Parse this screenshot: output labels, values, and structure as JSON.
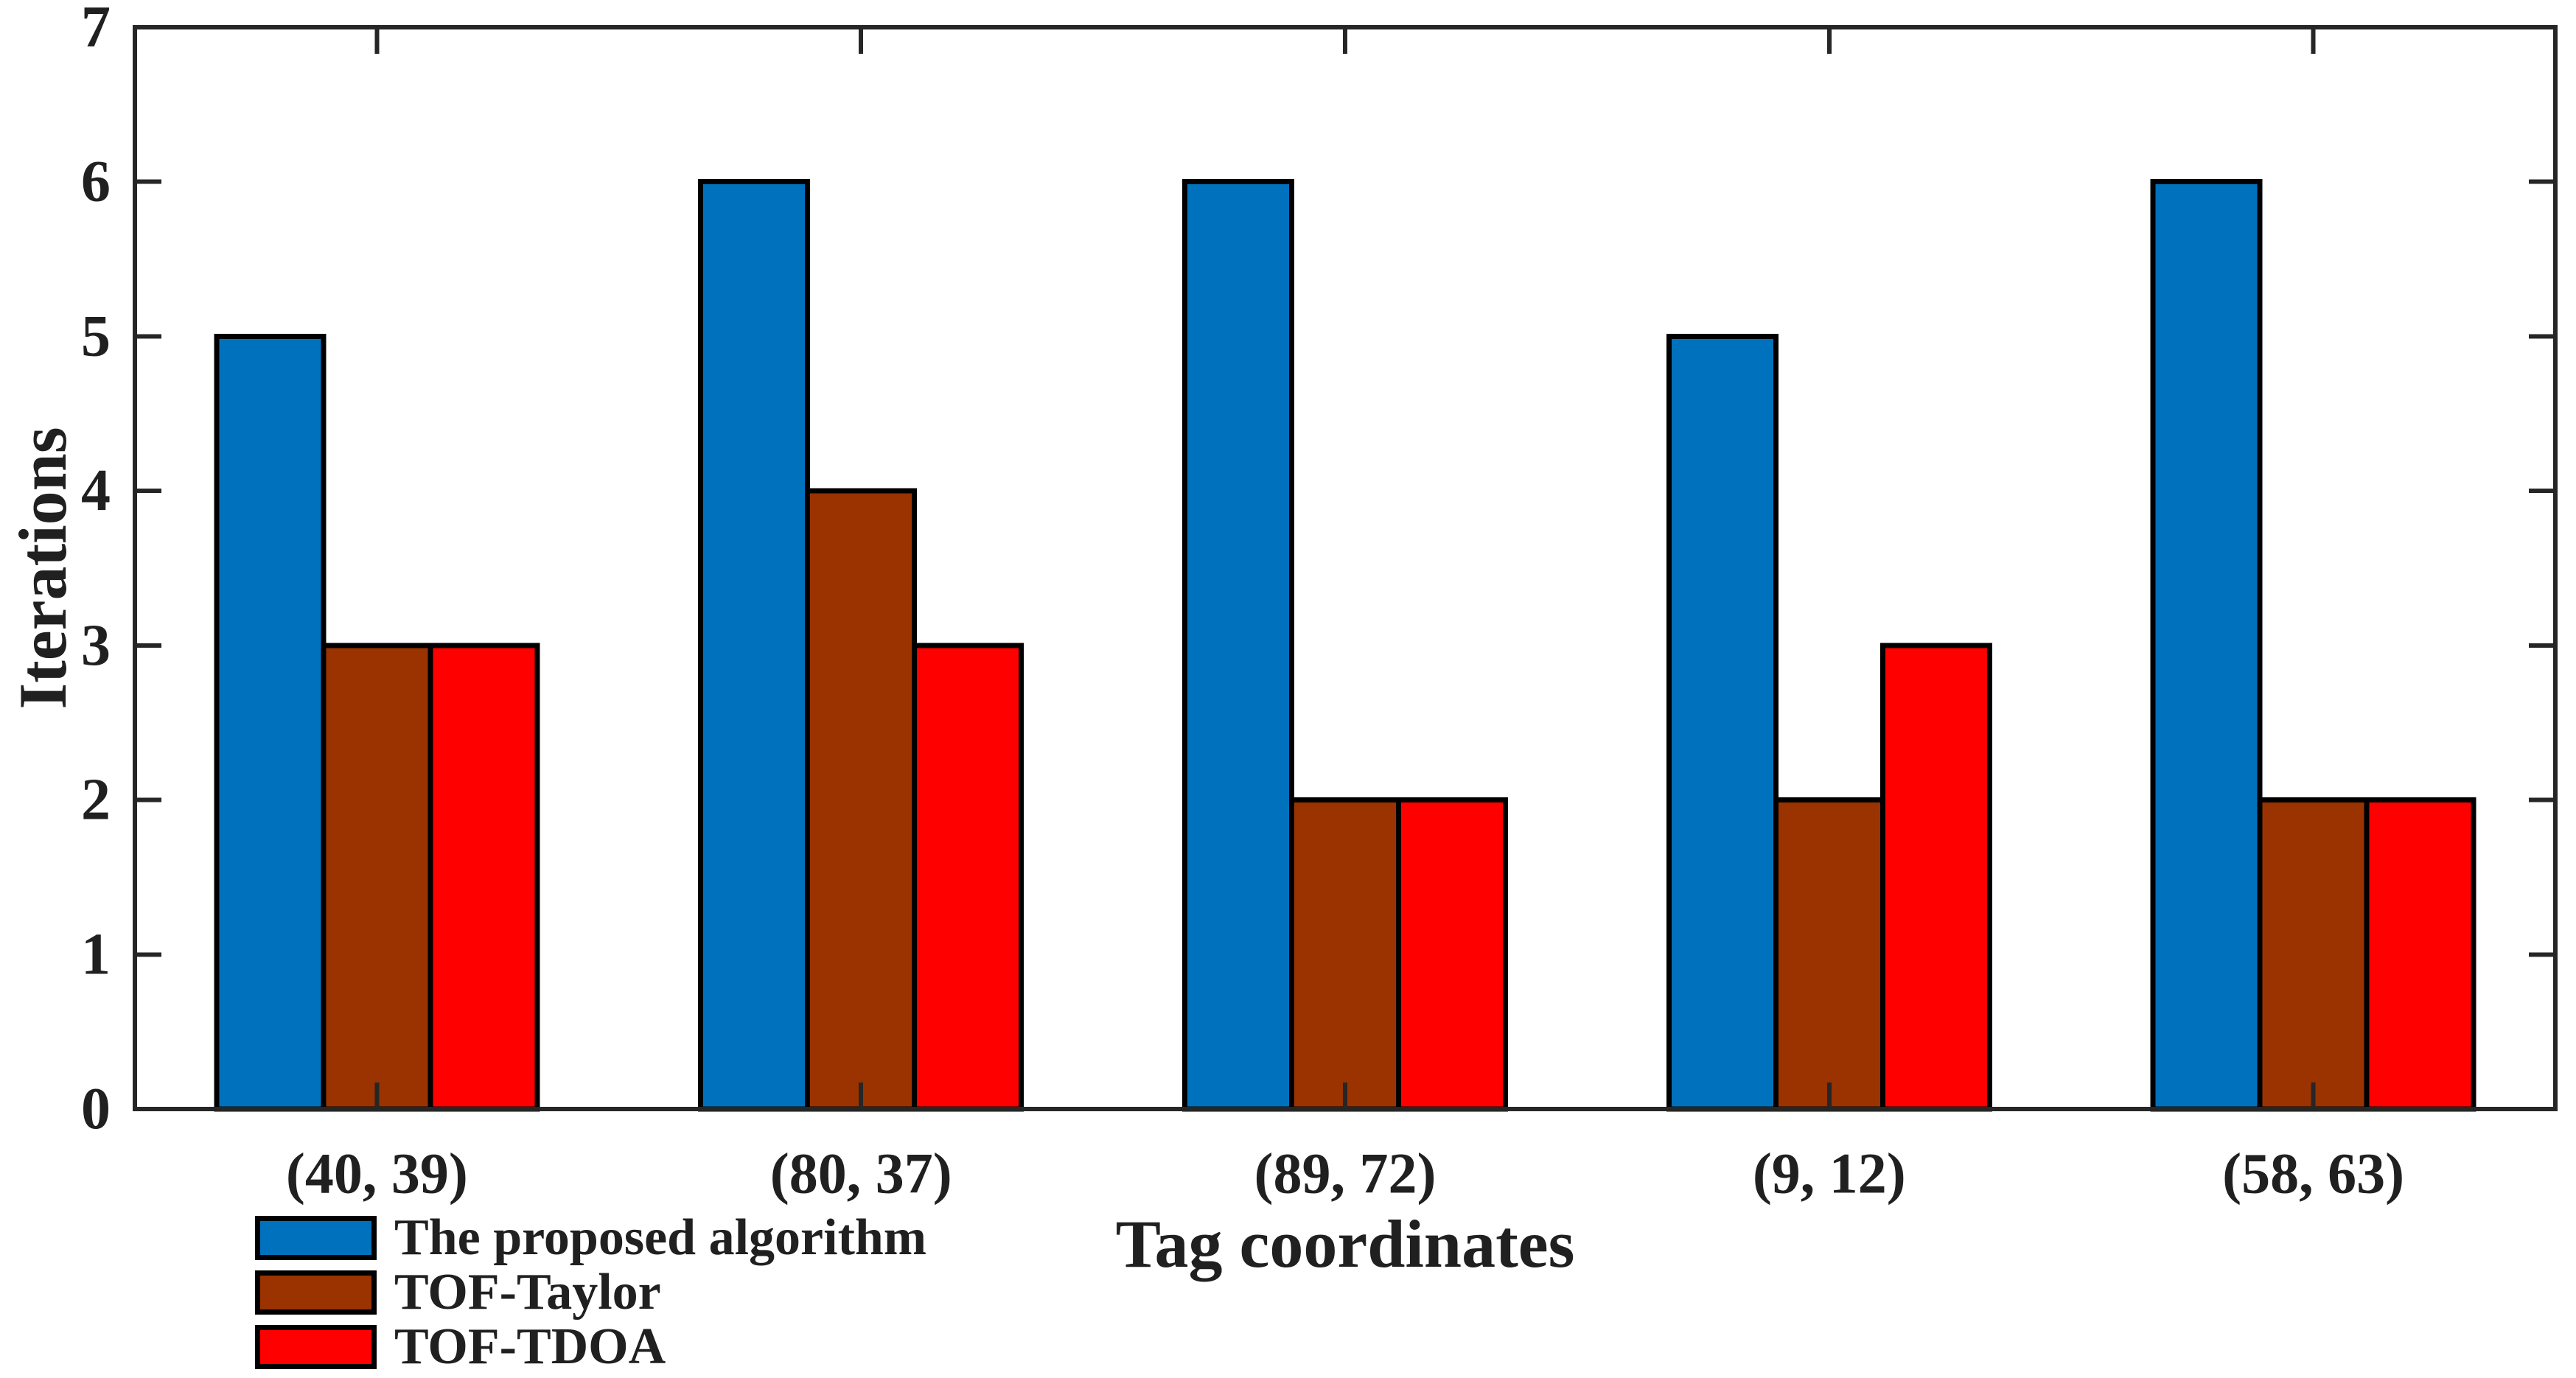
{
  "figure": {
    "background": "#FFFFFF"
  },
  "chart_data": {
    "type": "bar",
    "title": "",
    "xlabel": "Tag coordinates",
    "ylabel": "Iterations",
    "categories": [
      "(40, 39)",
      "(80, 37)",
      "(89, 72)",
      "(9, 12)",
      "(58, 63)"
    ],
    "series": [
      {
        "name": "The proposed algorithm",
        "color": "#0072BD",
        "values": [
          5,
          6,
          6,
          5,
          6
        ]
      },
      {
        "name": "TOF-Taylor",
        "color": "#9A3300",
        "values": [
          3,
          4,
          2,
          2,
          2
        ]
      },
      {
        "name": "TOF-TDOA",
        "color": "#FF0000",
        "values": [
          3,
          3,
          2,
          3,
          2
        ]
      }
    ],
    "ylim": [
      0,
      7
    ],
    "yticks": [
      0,
      1,
      2,
      3,
      4,
      5,
      6,
      7
    ],
    "grid": false,
    "legend_position": "bottom-left",
    "bar_edge_color": "#000000",
    "axis_color": "#262626",
    "text_color": "#202020"
  }
}
